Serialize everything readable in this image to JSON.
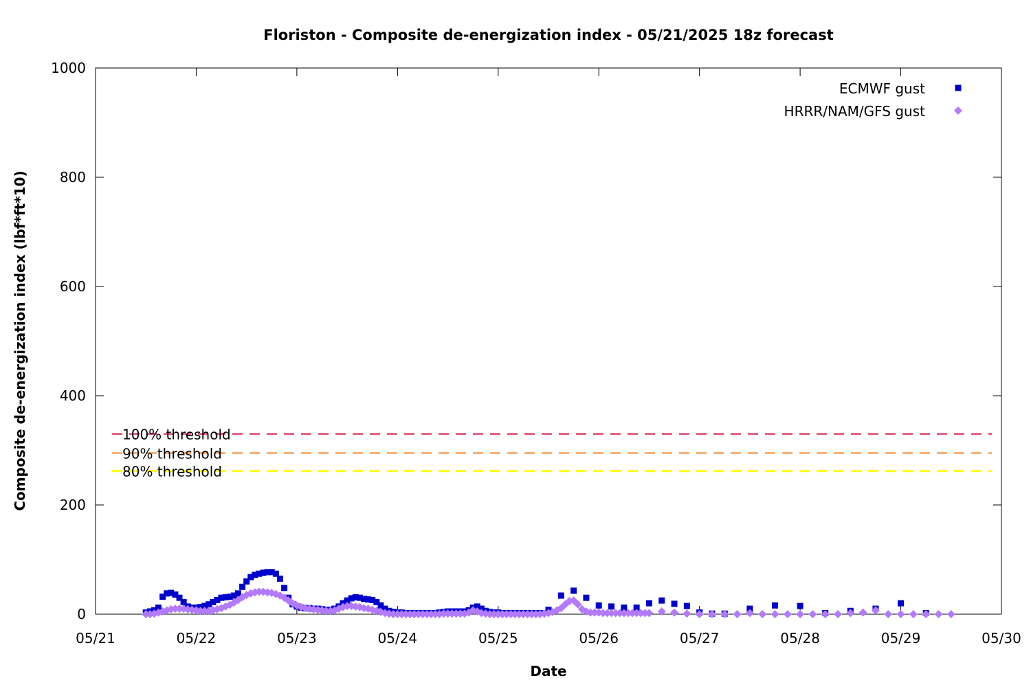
{
  "chart_data": {
    "type": "scatter",
    "title": "Floriston - Composite de-energization index - 05/21/2025 18z forecast",
    "xlabel": "Date",
    "ylabel": "Composite de-energization index (lbf*ft*10)",
    "xlim": [
      "05/21",
      "05/30"
    ],
    "ylim": [
      0,
      1000
    ],
    "x_tick_labels": [
      "05/21",
      "05/22",
      "05/23",
      "05/24",
      "05/25",
      "05/26",
      "05/27",
      "05/28",
      "05/29",
      "05/30"
    ],
    "y_tick_labels": [
      "0",
      "200",
      "400",
      "600",
      "800",
      "1000"
    ],
    "y_ticks": [
      0,
      200,
      400,
      600,
      800,
      1000
    ],
    "grid": false,
    "legend_position": "top-right",
    "thresholds": [
      {
        "label": "100% threshold",
        "value": 330,
        "color": "#e0607e"
      },
      {
        "label": "90% threshold",
        "value": 295,
        "color": "#f7b27a"
      },
      {
        "label": "80% threshold",
        "value": 262,
        "color": "#ffff00"
      }
    ],
    "series": [
      {
        "name": "ECMWF gust",
        "color": "#0000cc",
        "marker": "square",
        "points": [
          [
            "05/21 12:00",
            3
          ],
          [
            "05/21 13:00",
            5
          ],
          [
            "05/21 14:00",
            7
          ],
          [
            "05/21 15:00",
            12
          ],
          [
            "05/21 16:00",
            32
          ],
          [
            "05/21 17:00",
            38
          ],
          [
            "05/21 18:00",
            39
          ],
          [
            "05/21 19:00",
            36
          ],
          [
            "05/21 20:00",
            30
          ],
          [
            "05/21 21:00",
            22
          ],
          [
            "05/21 22:00",
            14
          ],
          [
            "05/21 23:00",
            12
          ],
          [
            "05/22 00:00",
            12
          ],
          [
            "05/22 01:00",
            13
          ],
          [
            "05/22 02:00",
            15
          ],
          [
            "05/22 03:00",
            18
          ],
          [
            "05/22 04:00",
            22
          ],
          [
            "05/22 05:00",
            26
          ],
          [
            "05/22 06:00",
            30
          ],
          [
            "05/22 07:00",
            31
          ],
          [
            "05/22 08:00",
            32
          ],
          [
            "05/22 09:00",
            34
          ],
          [
            "05/22 10:00",
            38
          ],
          [
            "05/22 11:00",
            50
          ],
          [
            "05/22 12:00",
            60
          ],
          [
            "05/22 13:00",
            68
          ],
          [
            "05/22 14:00",
            72
          ],
          [
            "05/22 15:00",
            74
          ],
          [
            "05/22 16:00",
            76
          ],
          [
            "05/22 17:00",
            77
          ],
          [
            "05/22 18:00",
            77
          ],
          [
            "05/22 19:00",
            74
          ],
          [
            "05/22 20:00",
            65
          ],
          [
            "05/22 21:00",
            48
          ],
          [
            "05/22 22:00",
            30
          ],
          [
            "05/22 23:00",
            18
          ],
          [
            "05/23 00:00",
            14
          ],
          [
            "05/23 01:00",
            12
          ],
          [
            "05/23 02:00",
            11
          ],
          [
            "05/23 03:00",
            11
          ],
          [
            "05/23 04:00",
            10
          ],
          [
            "05/23 05:00",
            10
          ],
          [
            "05/23 06:00",
            9
          ],
          [
            "05/23 07:00",
            8
          ],
          [
            "05/23 08:00",
            8
          ],
          [
            "05/23 09:00",
            10
          ],
          [
            "05/23 10:00",
            14
          ],
          [
            "05/23 11:00",
            20
          ],
          [
            "05/23 12:00",
            25
          ],
          [
            "05/23 13:00",
            29
          ],
          [
            "05/23 14:00",
            31
          ],
          [
            "05/23 15:00",
            30
          ],
          [
            "05/23 16:00",
            28
          ],
          [
            "05/23 17:00",
            27
          ],
          [
            "05/23 18:00",
            26
          ],
          [
            "05/23 19:00",
            22
          ],
          [
            "05/23 20:00",
            16
          ],
          [
            "05/23 21:00",
            10
          ],
          [
            "05/23 22:00",
            6
          ],
          [
            "05/23 23:00",
            4
          ],
          [
            "05/24 00:00",
            3
          ],
          [
            "05/24 01:00",
            3
          ],
          [
            "05/24 02:00",
            2
          ],
          [
            "05/24 03:00",
            2
          ],
          [
            "05/24 04:00",
            2
          ],
          [
            "05/24 05:00",
            2
          ],
          [
            "05/24 06:00",
            2
          ],
          [
            "05/24 07:00",
            2
          ],
          [
            "05/24 08:00",
            2
          ],
          [
            "05/24 09:00",
            2
          ],
          [
            "05/24 10:00",
            3
          ],
          [
            "05/24 11:00",
            4
          ],
          [
            "05/24 12:00",
            5
          ],
          [
            "05/24 13:00",
            5
          ],
          [
            "05/24 14:00",
            5
          ],
          [
            "05/24 15:00",
            5
          ],
          [
            "05/24 16:00",
            5
          ],
          [
            "05/24 17:00",
            7
          ],
          [
            "05/24 18:00",
            12
          ],
          [
            "05/24 19:00",
            14
          ],
          [
            "05/24 20:00",
            10
          ],
          [
            "05/24 21:00",
            6
          ],
          [
            "05/24 22:00",
            4
          ],
          [
            "05/24 23:00",
            3
          ],
          [
            "05/25 00:00",
            3
          ],
          [
            "05/25 01:00",
            2
          ],
          [
            "05/25 02:00",
            2
          ],
          [
            "05/25 03:00",
            2
          ],
          [
            "05/25 04:00",
            2
          ],
          [
            "05/25 05:00",
            2
          ],
          [
            "05/25 06:00",
            2
          ],
          [
            "05/25 07:00",
            2
          ],
          [
            "05/25 08:00",
            2
          ],
          [
            "05/25 09:00",
            2
          ],
          [
            "05/25 10:00",
            2
          ],
          [
            "05/25 12:00",
            8
          ],
          [
            "05/25 15:00",
            34
          ],
          [
            "05/25 18:00",
            43
          ],
          [
            "05/25 21:00",
            30
          ],
          [
            "05/26 00:00",
            16
          ],
          [
            "05/26 03:00",
            14
          ],
          [
            "05/26 06:00",
            12
          ],
          [
            "05/26 09:00",
            12
          ],
          [
            "05/26 12:00",
            20
          ],
          [
            "05/26 15:00",
            25
          ],
          [
            "05/26 18:00",
            19
          ],
          [
            "05/26 21:00",
            15
          ],
          [
            "05/27 00:00",
            3
          ],
          [
            "05/27 03:00",
            1
          ],
          [
            "05/27 06:00",
            1
          ],
          [
            "05/27 12:00",
            10
          ],
          [
            "05/27 18:00",
            16
          ],
          [
            "05/28 00:00",
            15
          ],
          [
            "05/28 06:00",
            2
          ],
          [
            "05/28 12:00",
            6
          ],
          [
            "05/28 18:00",
            10
          ],
          [
            "05/29 00:00",
            20
          ],
          [
            "05/29 06:00",
            2
          ]
        ]
      },
      {
        "name": "HRRR/NAM/GFS gust",
        "color": "#b27aff",
        "marker": "diamond",
        "points": [
          [
            "05/21 12:00",
            0
          ],
          [
            "05/21 13:00",
            0
          ],
          [
            "05/21 14:00",
            1
          ],
          [
            "05/21 15:00",
            3
          ],
          [
            "05/21 16:00",
            5
          ],
          [
            "05/21 17:00",
            7
          ],
          [
            "05/21 18:00",
            9
          ],
          [
            "05/21 19:00",
            10
          ],
          [
            "05/21 20:00",
            10
          ],
          [
            "05/21 21:00",
            10
          ],
          [
            "05/21 22:00",
            9
          ],
          [
            "05/21 23:00",
            8
          ],
          [
            "05/22 00:00",
            7
          ],
          [
            "05/22 01:00",
            6
          ],
          [
            "05/22 02:00",
            6
          ],
          [
            "05/22 03:00",
            6
          ],
          [
            "05/22 04:00",
            7
          ],
          [
            "05/22 05:00",
            9
          ],
          [
            "05/22 06:00",
            11
          ],
          [
            "05/22 07:00",
            14
          ],
          [
            "05/22 08:00",
            17
          ],
          [
            "05/22 09:00",
            21
          ],
          [
            "05/22 10:00",
            26
          ],
          [
            "05/22 11:00",
            31
          ],
          [
            "05/22 12:00",
            35
          ],
          [
            "05/22 13:00",
            38
          ],
          [
            "05/22 14:00",
            40
          ],
          [
            "05/22 15:00",
            41
          ],
          [
            "05/22 16:00",
            41
          ],
          [
            "05/22 17:00",
            40
          ],
          [
            "05/22 18:00",
            39
          ],
          [
            "05/22 19:00",
            37
          ],
          [
            "05/22 20:00",
            34
          ],
          [
            "05/22 21:00",
            30
          ],
          [
            "05/22 22:00",
            25
          ],
          [
            "05/22 23:00",
            20
          ],
          [
            "05/23 00:00",
            16
          ],
          [
            "05/23 01:00",
            13
          ],
          [
            "05/23 02:00",
            11
          ],
          [
            "05/23 03:00",
            10
          ],
          [
            "05/23 04:00",
            9
          ],
          [
            "05/23 05:00",
            8
          ],
          [
            "05/23 06:00",
            7
          ],
          [
            "05/23 07:00",
            6
          ],
          [
            "05/23 08:00",
            6
          ],
          [
            "05/23 09:00",
            7
          ],
          [
            "05/23 10:00",
            10
          ],
          [
            "05/23 11:00",
            13
          ],
          [
            "05/23 12:00",
            15
          ],
          [
            "05/23 13:00",
            15
          ],
          [
            "05/23 14:00",
            14
          ],
          [
            "05/23 15:00",
            13
          ],
          [
            "05/23 16:00",
            11
          ],
          [
            "05/23 17:00",
            10
          ],
          [
            "05/23 18:00",
            8
          ],
          [
            "05/23 19:00",
            6
          ],
          [
            "05/23 20:00",
            4
          ],
          [
            "05/23 21:00",
            2
          ],
          [
            "05/23 22:00",
            1
          ],
          [
            "05/23 23:00",
            0
          ],
          [
            "05/24 00:00",
            0
          ],
          [
            "05/24 01:00",
            0
          ],
          [
            "05/24 02:00",
            0
          ],
          [
            "05/24 03:00",
            0
          ],
          [
            "05/24 04:00",
            0
          ],
          [
            "05/24 05:00",
            0
          ],
          [
            "05/24 06:00",
            0
          ],
          [
            "05/24 07:00",
            0
          ],
          [
            "05/24 08:00",
            0
          ],
          [
            "05/24 09:00",
            0
          ],
          [
            "05/24 10:00",
            0
          ],
          [
            "05/24 11:00",
            1
          ],
          [
            "05/24 12:00",
            1
          ],
          [
            "05/24 13:00",
            1
          ],
          [
            "05/24 14:00",
            1
          ],
          [
            "05/24 15:00",
            1
          ],
          [
            "05/24 16:00",
            1
          ],
          [
            "05/24 17:00",
            3
          ],
          [
            "05/24 18:00",
            7
          ],
          [
            "05/24 19:00",
            5
          ],
          [
            "05/24 20:00",
            2
          ],
          [
            "05/24 21:00",
            1
          ],
          [
            "05/24 22:00",
            0
          ],
          [
            "05/24 23:00",
            0
          ],
          [
            "05/25 00:00",
            0
          ],
          [
            "05/25 01:00",
            0
          ],
          [
            "05/25 02:00",
            0
          ],
          [
            "05/25 03:00",
            0
          ],
          [
            "05/25 04:00",
            0
          ],
          [
            "05/25 05:00",
            0
          ],
          [
            "05/25 06:00",
            0
          ],
          [
            "05/25 07:00",
            0
          ],
          [
            "05/25 08:00",
            0
          ],
          [
            "05/25 09:00",
            0
          ],
          [
            "05/25 10:00",
            0
          ],
          [
            "05/25 11:00",
            1
          ],
          [
            "05/25 12:00",
            2
          ],
          [
            "05/25 13:00",
            4
          ],
          [
            "05/25 14:00",
            7
          ],
          [
            "05/25 15:00",
            11
          ],
          [
            "05/25 16:00",
            18
          ],
          [
            "05/25 17:00",
            24
          ],
          [
            "05/25 18:00",
            25
          ],
          [
            "05/25 19:00",
            18
          ],
          [
            "05/25 20:00",
            9
          ],
          [
            "05/25 21:00",
            5
          ],
          [
            "05/25 22:00",
            3
          ],
          [
            "05/25 23:00",
            3
          ],
          [
            "05/26 00:00",
            3
          ],
          [
            "05/26 01:00",
            2
          ],
          [
            "05/26 02:00",
            2
          ],
          [
            "05/26 03:00",
            2
          ],
          [
            "05/26 04:00",
            2
          ],
          [
            "05/26 05:00",
            2
          ],
          [
            "05/26 06:00",
            2
          ],
          [
            "05/26 07:00",
            2
          ],
          [
            "05/26 08:00",
            2
          ],
          [
            "05/26 09:00",
            2
          ],
          [
            "05/26 10:00",
            2
          ],
          [
            "05/26 11:00",
            2
          ],
          [
            "05/26 12:00",
            2
          ],
          [
            "05/26 15:00",
            5
          ],
          [
            "05/26 18:00",
            3
          ],
          [
            "05/26 21:00",
            1
          ],
          [
            "05/27 00:00",
            0
          ],
          [
            "05/27 03:00",
            0
          ],
          [
            "05/27 06:00",
            0
          ],
          [
            "05/27 09:00",
            0
          ],
          [
            "05/27 12:00",
            2
          ],
          [
            "05/27 15:00",
            0
          ],
          [
            "05/27 18:00",
            0
          ],
          [
            "05/27 21:00",
            0
          ],
          [
            "05/28 00:00",
            0
          ],
          [
            "05/28 03:00",
            0
          ],
          [
            "05/28 06:00",
            0
          ],
          [
            "05/28 09:00",
            0
          ],
          [
            "05/28 12:00",
            2
          ],
          [
            "05/28 15:00",
            3
          ],
          [
            "05/28 18:00",
            7
          ],
          [
            "05/28 21:00",
            0
          ],
          [
            "05/29 00:00",
            0
          ],
          [
            "05/29 03:00",
            0
          ],
          [
            "05/29 06:00",
            0
          ],
          [
            "05/29 09:00",
            0
          ],
          [
            "05/29 12:00",
            0
          ]
        ]
      }
    ]
  }
}
